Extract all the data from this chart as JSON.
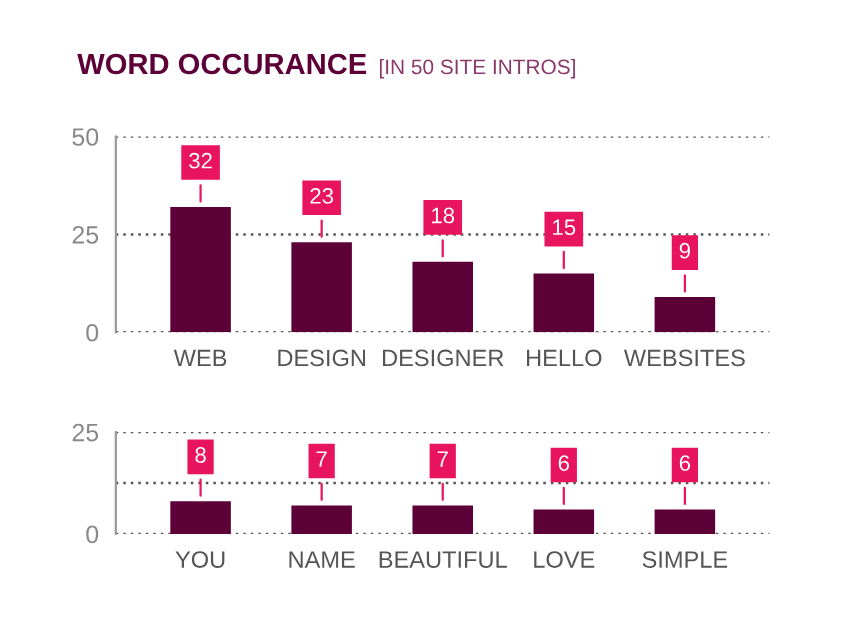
{
  "chart_data": [
    {
      "type": "bar",
      "title": "WORD OCCURANCE",
      "subtitle": "[IN 50 SITE INTROS]",
      "categories": [
        "WEB",
        "DESIGN",
        "DESIGNER",
        "HELLO",
        "WEBSITES"
      ],
      "values": [
        32,
        23,
        18,
        15,
        9
      ],
      "color": "#5e0038",
      "ylim": [
        0,
        50
      ],
      "yticks": [
        0,
        25,
        50
      ],
      "grid": "y",
      "data_labels": true
    },
    {
      "type": "bar",
      "categories": [
        "YOU",
        "NAME",
        "BEAUTIFUL",
        "LOVE",
        "SIMPLE"
      ],
      "values": [
        8,
        7,
        7,
        6,
        6
      ],
      "color": "#5e0038",
      "ylim": [
        0,
        25
      ],
      "yticks": [
        0,
        {
          "value": 12.5,
          "label": null
        },
        25
      ],
      "grid": "y",
      "data_labels": true
    }
  ]
}
